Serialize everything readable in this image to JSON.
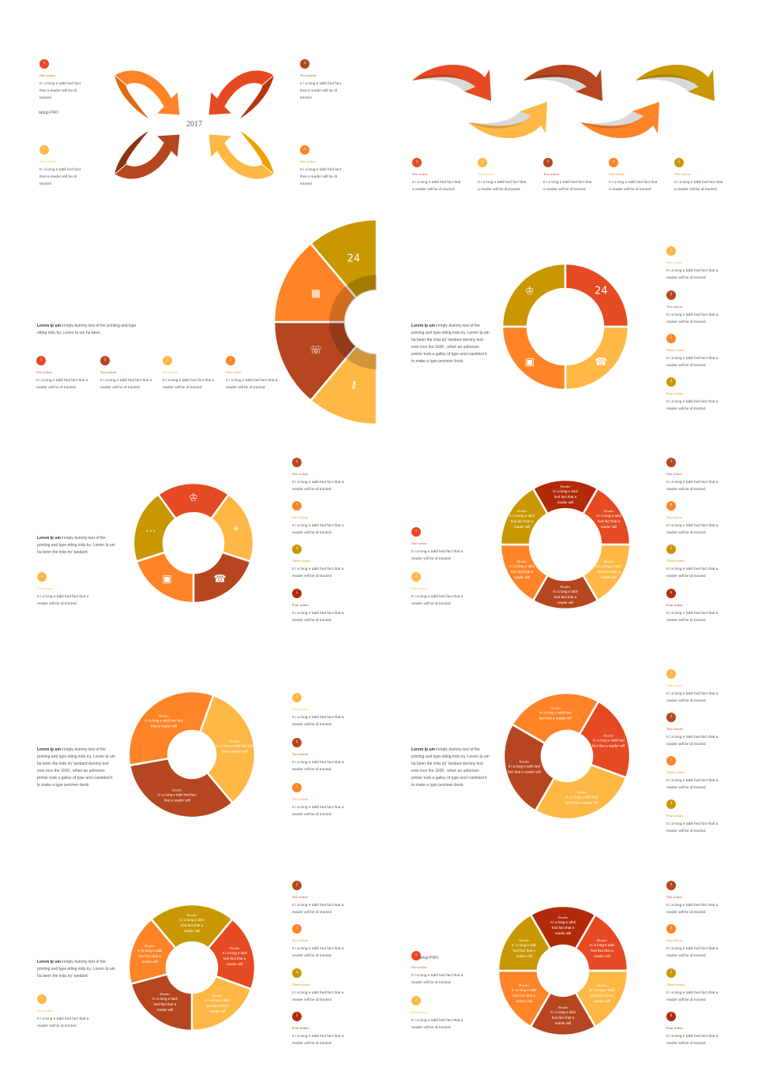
{
  "colors": {
    "red": "#E64A22",
    "orange": "#FF8427",
    "brown": "#B5461F",
    "yellow": "#FFB845",
    "gold": "#C99700",
    "darkred": "#B12B0A"
  },
  "slides": [
    {
      "year": "2017",
      "brand": "tartup PRO",
      "items": [
        {
          "n": "1",
          "color": "#E64A22",
          "action": "One  action",
          "text": "It i  a long e tabli hed fact that a reader will be di tracted"
        },
        {
          "n": "2",
          "color": "#FFB845",
          "action": "Two  action",
          "text": "It i  a long e tabli hed fact that a reader will be di tracted"
        },
        {
          "n": "3",
          "color": "#B5461F",
          "action": "Two  action",
          "text": "It i  a long e tabli hed fact that a reader will be di tracted"
        },
        {
          "n": "4",
          "color": "#FF8427",
          "action": "One  action",
          "text": "It i  a long e tabli hed fact that a reader will be di tracted"
        }
      ]
    },
    {
      "items": [
        {
          "n": "1",
          "color": "#E64A22",
          "action": "One  action",
          "text": "It i  a long e tabli hed fact that a reader will be di tracted"
        },
        {
          "n": "2",
          "color": "#FFB845",
          "action": "Two  action",
          "text": "It i  a long e tabli hed fact that a reader will be di tracted"
        },
        {
          "n": "3",
          "color": "#B5461F",
          "action": "Two  action",
          "text": "It i  a long e tabli hed fact that a reader will be di tracted"
        },
        {
          "n": "4",
          "color": "#FF8427",
          "action": "One  action",
          "text": "It i  a long e tabli hed fact that a reader will be di tracted"
        },
        {
          "n": "5",
          "color": "#C99700",
          "action": "Two  action",
          "text": "It i  a long e tabli hed fact that a reader will be di tracted"
        }
      ]
    },
    {
      "para": {
        "bold": "Lorem Ip um i",
        "rest": "  imply dummy text of the printing and type etting indu try. Lorem Ip um ha  been"
      },
      "segments": [
        {
          "color": "#FFB845",
          "icon": "key-icon",
          "glyph": "⚷"
        },
        {
          "color": "#B5461F",
          "icon": "chat-icon",
          "glyph": "☏"
        },
        {
          "color": "#FF8427",
          "icon": "map-icon",
          "glyph": "▦"
        },
        {
          "color": "#C99700",
          "icon": "calendar-24-icon",
          "glyph": "24"
        }
      ],
      "items": [
        {
          "n": "1",
          "color": "#E64A22",
          "action": "One  action",
          "text": "It i  a long e tabli hed fact that a reader will be di tracted"
        },
        {
          "n": "3",
          "color": "#B5461F",
          "action": "Two  action",
          "text": "It i  a long e tabli hed fact that a reader will be di tracted"
        },
        {
          "n": "2",
          "color": "#FFB845",
          "action": "Two  action",
          "text": "It i  a long e tabli hed fact that a reader will be di tracted"
        },
        {
          "n": "4",
          "color": "#FF8427",
          "action": "One  action",
          "text": "It i  a long e tabli hed fact that a reader will be di tracted"
        }
      ]
    },
    {
      "para": {
        "bold": "Lorem Ip um i",
        "rest": "  imply dummy text of the printing and type etting indu try. Lorem Ip um ha  been the indu try'  tandard dummy text ever  ince the 1500 , when an unknown printer took a galley of type and  crambled it to make a type  pecimen book."
      },
      "segments": [
        {
          "color": "#C99700",
          "icon": "trophy-icon",
          "glyph": "♔"
        },
        {
          "color": "#E64A22",
          "icon": "laptop-24-icon",
          "glyph": "24"
        },
        {
          "color": "#FFB845",
          "icon": "phone-icon",
          "glyph": "☎"
        },
        {
          "color": "#FF8427",
          "icon": "box-icon",
          "glyph": "▣"
        }
      ],
      "items": [
        {
          "n": "1",
          "color": "#FFB845",
          "action": "One  action",
          "text": "It i  a long e tabli hed fact that a reader will be di tracted"
        },
        {
          "n": "2",
          "color": "#B5461F",
          "action": "Two  action",
          "text": "It i  a long e tabli hed fact that a reader will be di tracted"
        },
        {
          "n": "3",
          "color": "#FF8427",
          "action": "Three  action",
          "text": "It i  a long e tabli hed fact that a reader will be di tracted"
        },
        {
          "n": "4",
          "color": "#C99700",
          "action": "Four  action",
          "text": "It i  a long e tabli hed fact that a reader will be di tracted"
        }
      ]
    },
    {
      "para": {
        "bold": "Lorem Ip um i",
        "rest": "  imply dummy text of the printing and type etting indu try. Lorem Ip um ha  been the indu try'  tandard"
      },
      "segments": [
        {
          "color": "#E64A22",
          "icon": "trophy-icon",
          "glyph": "♔"
        },
        {
          "color": "#FFB845",
          "icon": "location-icon",
          "glyph": "⌖"
        },
        {
          "color": "#B5461F",
          "icon": "phone-icon",
          "glyph": "☎"
        },
        {
          "color": "#FF8427",
          "icon": "box-icon",
          "glyph": "▣"
        },
        {
          "color": "#C99700",
          "icon": "chat-icon",
          "glyph": "…"
        }
      ],
      "items": [
        {
          "n": "1",
          "color": "#FFB845",
          "action": "One  action",
          "text": "It i  a long e tabli hed fact that a reader will be di tracted"
        },
        {
          "n": "2",
          "color": "#B5461F",
          "action": "One  action",
          "text": "It i  a long e tabli hed fact that a reader will be di tracted"
        },
        {
          "n": "3",
          "color": "#FF8427",
          "action": "Two  action",
          "text": "It i  a long e tabli hed fact that a reader will be di tracted"
        },
        {
          "n": "4",
          "color": "#C99700",
          "action": "Three  action",
          "text": "It i  a long e tabli hed fact that a reader will be di tracted"
        },
        {
          "n": "5",
          "color": "#B12B0A",
          "action": "Four  action",
          "text": "It i  a long e tabli hed fact that a reader will be di tracted"
        }
      ]
    },
    {
      "segments": [
        {
          "color": "#B12B0A",
          "header": "Header",
          "text": "It i  a long e tabli hed fact that a reader will"
        },
        {
          "color": "#E64A22",
          "header": "Header",
          "text": "It i  a long e tabli hed fact that a reader will"
        },
        {
          "color": "#FFB845",
          "header": "Header",
          "text": "It i  a long e tabli hed fact that a reader will"
        },
        {
          "color": "#B5461F",
          "header": "Header",
          "text": "It i  a long e tabli hed fact that a reader will"
        },
        {
          "color": "#FF8427",
          "header": "Header",
          "text": "It i  a long e tabli hed fact that a reader will"
        },
        {
          "color": "#C99700",
          "header": "Header",
          "text": "It i  a long e tabli hed fact that a reader will"
        }
      ],
      "items": [
        {
          "n": "1",
          "color": "#E64A22",
          "action": "One  action",
          "text": "It i  a long e tabli hed fact that a reader will be di tracted"
        },
        {
          "n": "2",
          "color": "#FFB845",
          "action": "One  action",
          "text": "It i  a long e tabli hed fact that a reader will be di tracted"
        },
        {
          "n": "3",
          "color": "#B5461F",
          "action": "One  action",
          "text": "It i  a long e tabli hed fact that a reader will be di tracted"
        },
        {
          "n": "4",
          "color": "#FF8427",
          "action": "Two  action",
          "text": "It i  a long e tabli hed fact that a reader will be di tracted"
        },
        {
          "n": "5",
          "color": "#C99700",
          "action": "Three  action",
          "text": "It i  a long e tabli hed fact that a reader will be di tracted"
        },
        {
          "n": "6",
          "color": "#B12B0A",
          "action": "Four  action",
          "text": "It i  a long e tabli hed fact that a reader will be di tracted"
        }
      ]
    },
    {
      "para": {
        "bold": "Lorem Ip um i",
        "rest": "  imply dummy text of the printing and type etting indu try. Lorem Ip um ha  been the indu try'  tandard dummy text ever  ince the 1500 , when an unknown printer took a galley of type and  crambled it to make a type  pecimen book."
      },
      "segments": [
        {
          "color": "#FF8427",
          "header": "Header",
          "text": "It i  a long e tabli hed fact that a reader will"
        },
        {
          "color": "#FFB845",
          "header": "Header",
          "text": "It i  a long e tabli hed fact that a reader will"
        },
        {
          "color": "#B5461F",
          "header": "Header",
          "text": "It i  a long e tabli hed fact that a reader will"
        }
      ],
      "items": [
        {
          "n": "1",
          "color": "#FFB845",
          "action": "One  action",
          "text": "It i  a long e tabli hed fact that a reader will be di tracted"
        },
        {
          "n": "2",
          "color": "#B5461F",
          "action": "Two  action",
          "text": "It i  a long e tabli hed fact that a reader will be di tracted"
        },
        {
          "n": "3",
          "color": "#FF8427",
          "action": "Two  action",
          "text": "It i  a long e tabli hed fact that a reader will be di tracted"
        }
      ]
    },
    {
      "para": {
        "bold": "Lorem Ip um i",
        "rest": "  imply dummy text of the printing and type etting indu try. Lorem Ip um ha  been the indu try'  tandard dummy text ever  ince the 1500 , when an unknown printer took a galley of type and  crambled it to make a type  pecimen book."
      },
      "segments": [
        {
          "color": "#FF8427",
          "header": "Header",
          "text": "It i  a long e tabli hed fact that a reader will"
        },
        {
          "color": "#E64A22",
          "header": "Header",
          "text": "It i  a long e tabli hed fact that a reader will"
        },
        {
          "color": "#FFB845",
          "header": "Header",
          "text": "It i  a long e tabli hed fact that a reader will"
        },
        {
          "color": "#B5461F",
          "header": "Header",
          "text": "It i  a long e tabli hed fact that a reader will"
        }
      ],
      "items": [
        {
          "n": "1",
          "color": "#FFB845",
          "action": "One  action",
          "text": "It i  a long e tabli hed fact that a reader will be di tracted"
        },
        {
          "n": "2",
          "color": "#B5461F",
          "action": "Two  action",
          "text": "It i  a long e tabli hed fact that a reader will be di tracted"
        },
        {
          "n": "3",
          "color": "#FF8427",
          "action": "Three  action",
          "text": "It i  a long e tabli hed fact that a reader will be di tracted"
        },
        {
          "n": "4",
          "color": "#C99700",
          "action": "Four  action",
          "text": "It i  a long e tabli hed fact that a reader will be di tracted"
        }
      ]
    },
    {
      "para": {
        "bold": "Lorem Ip um i",
        "rest": "  imply dummy text of the printing and type etting indu try. Lorem Ip um ha  been the indu try'  tandard"
      },
      "segments": [
        {
          "color": "#C99700",
          "header": "Header",
          "text": "It i  a long e tabli hed fact that a reader will"
        },
        {
          "color": "#E64A22",
          "header": "Header",
          "text": "It i  a long e tabli hed fact that a reader will"
        },
        {
          "color": "#FFB845",
          "header": "Header",
          "text": "It i  a long e tabli hed fact that a reader will"
        },
        {
          "color": "#B5461F",
          "header": "Header",
          "text": "It i  a long e tabli hed fact that a reader will"
        },
        {
          "color": "#FF8427",
          "header": "Header",
          "text": "It i  a long e tabli hed fact that a reader will"
        }
      ],
      "items": [
        {
          "n": "1",
          "color": "#FFB845",
          "action": "One  action",
          "text": "It i  a long e tabli hed fact that a reader will be di tracted"
        },
        {
          "n": "2",
          "color": "#B5461F",
          "action": "One  action",
          "text": "It i  a long e tabli hed fact that a reader will be di tracted"
        },
        {
          "n": "3",
          "color": "#FF8427",
          "action": "Two  action",
          "text": "It i  a long e tabli hed fact that a reader will be di tracted"
        },
        {
          "n": "4",
          "color": "#C99700",
          "action": "Three  action",
          "text": "It i  a long e tabli hed fact that a reader will be di tracted"
        },
        {
          "n": "5",
          "color": "#B12B0A",
          "action": "Four  action",
          "text": "It i  a long e tabli hed fact that a reader will be di tracted"
        }
      ]
    },
    {
      "brand": "tartup PRO",
      "segments": [
        {
          "color": "#B12B0A",
          "header": "Header",
          "text": "It i  a long e tabli hed fact that a reader will"
        },
        {
          "color": "#E64A22",
          "header": "Header",
          "text": "It i  a long e tabli hed fact that a reader will"
        },
        {
          "color": "#FFB845",
          "header": "Header",
          "text": "It i  a long e tabli hed fact that a reader will"
        },
        {
          "color": "#B5461F",
          "header": "Header",
          "text": "It i  a long e tabli hed fact that a reader will"
        },
        {
          "color": "#FF8427",
          "header": "Header",
          "text": "It i  a long e tabli hed fact that a reader will"
        },
        {
          "color": "#C99700",
          "header": "Header",
          "text": "It i  a long e tabli hed fact that a reader will"
        }
      ],
      "items": [
        {
          "n": "1",
          "color": "#E64A22",
          "action": "One  action",
          "text": "It i  a long e tabli hed fact that a reader will be di tracted"
        },
        {
          "n": "2",
          "color": "#FFB845",
          "action": "One  action",
          "text": "It i  a long e tabli hed fact that a reader will be di tracted"
        },
        {
          "n": "3",
          "color": "#B5461F",
          "action": "One  action",
          "text": "It i  a long e tabli hed fact that a reader will be di tracted"
        },
        {
          "n": "4",
          "color": "#FF8427",
          "action": "Two  action",
          "text": "It i  a long e tabli hed fact that a reader will be di tracted"
        },
        {
          "n": "5",
          "color": "#C99700",
          "action": "Three  action",
          "text": "It i  a long e tabli hed fact that a reader will be di tracted"
        },
        {
          "n": "6",
          "color": "#B12B0A",
          "action": "Four  action",
          "text": "It i  a long e tabli hed fact that a reader will be di tracted"
        }
      ]
    }
  ]
}
